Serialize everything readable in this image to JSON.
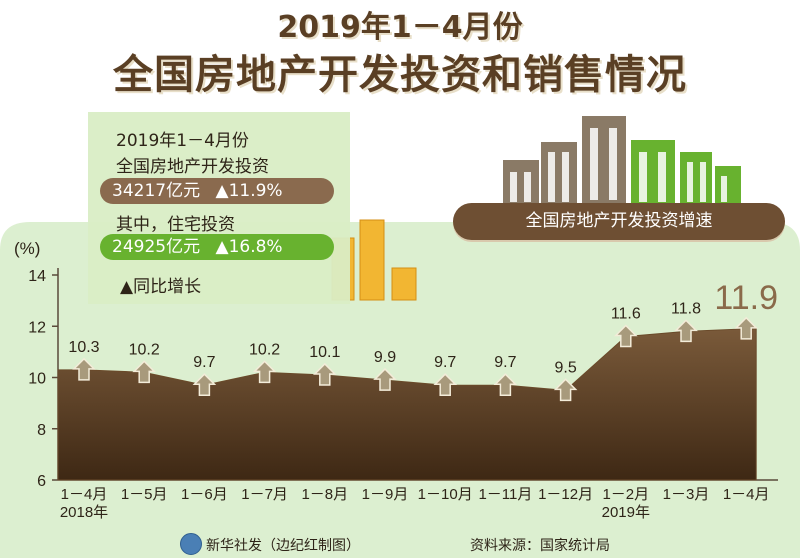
{
  "title": {
    "line1": "2019年1－4月份",
    "line2": "全国房地产开发投资和销售情况"
  },
  "info": {
    "period": "2019年1－4月份",
    "investment_label": "全国房地产开发投资",
    "investment_value": "34217亿元",
    "investment_growth": "▲11.9%",
    "residential_label": "其中，住宅投资",
    "residential_value": "24925亿元",
    "residential_growth": "▲16.8%",
    "legend_note": "▲同比增长"
  },
  "banner_label": "全国房地产开发投资增速",
  "footer": {
    "source_agency": "新华社发（边纪红制图）",
    "data_source": "资料来源：国家统计局"
  },
  "colors": {
    "area_dark": "#5a3a1f",
    "area_light": "#8a6a4a",
    "marker": "#a89a7c",
    "background_panel": "#dcefd0",
    "green": "#68b22f",
    "brown": "#8a6a4e"
  },
  "chart_data": {
    "type": "area",
    "ylabel": "(%)",
    "ylim": [
      6,
      14
    ],
    "yticks": [
      6,
      8,
      10,
      12,
      14
    ],
    "categories": [
      "1－4月",
      "1－5月",
      "1－6月",
      "1－7月",
      "1－8月",
      "1－9月",
      "1－10月",
      "1－11月",
      "1－12月",
      "1－2月",
      "1－3月",
      "1－4月"
    ],
    "values": [
      10.3,
      10.2,
      9.7,
      10.2,
      10.1,
      9.9,
      9.7,
      9.7,
      9.5,
      11.6,
      11.8,
      11.9
    ],
    "value_labels": [
      "10.3",
      "10.2",
      "9.7",
      "10.2",
      "10.1",
      "9.9",
      "9.7",
      "9.7",
      "9.5",
      "11.6",
      "11.8",
      "11.9"
    ],
    "year_labels": [
      {
        "index": 0,
        "text": "2018年"
      },
      {
        "index": 9,
        "text": "2019年"
      }
    ],
    "highlight_last": true,
    "grid": false
  }
}
